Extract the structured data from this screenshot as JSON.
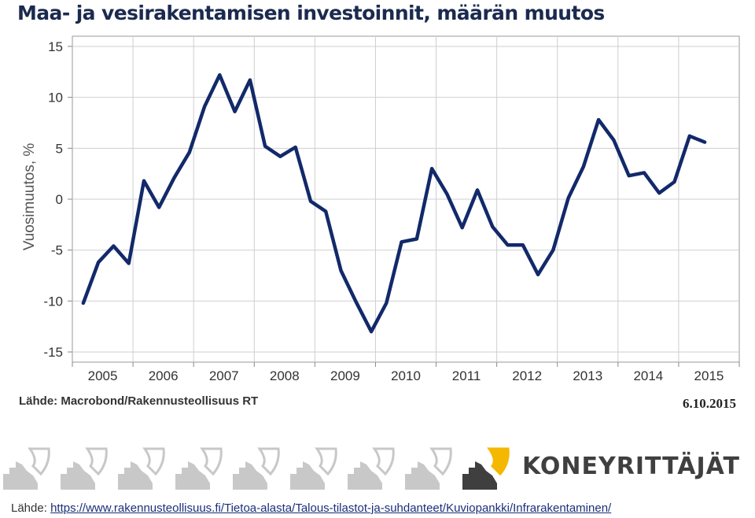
{
  "chart_data": {
    "type": "line",
    "title": "Maa- ja vesirakentamisen investoinnit, määrän muutos",
    "ylabel": "Vuosimuutos, %",
    "xlabel": "",
    "ylim": [
      -16,
      16
    ],
    "yticks": [
      15,
      10,
      5,
      0,
      -5,
      -10,
      -15
    ],
    "x_tick_labels": [
      "2005",
      "2006",
      "2007",
      "2008",
      "2009",
      "2010",
      "2011",
      "2012",
      "2013",
      "2014",
      "2015"
    ],
    "grid": true,
    "legend": "none",
    "line_color": "#12296a",
    "series": [
      {
        "x": [
          "2005 Q1",
          "2005 Q2",
          "2005 Q3",
          "2005 Q4",
          "2006 Q1",
          "2006 Q2",
          "2006 Q3",
          "2006 Q4",
          "2007 Q1",
          "2007 Q2",
          "2007 Q3",
          "2007 Q4",
          "2008 Q1",
          "2008 Q2",
          "2008 Q3",
          "2008 Q4",
          "2009 Q1",
          "2009 Q2",
          "2009 Q3",
          "2009 Q4",
          "2010 Q1",
          "2010 Q2",
          "2010 Q3",
          "2010 Q4",
          "2011 Q1",
          "2011 Q2",
          "2011 Q3",
          "2011 Q4",
          "2012 Q1",
          "2012 Q2",
          "2012 Q3",
          "2012 Q4",
          "2013 Q1",
          "2013 Q2",
          "2013 Q3",
          "2013 Q4",
          "2014 Q1",
          "2014 Q2",
          "2014 Q3",
          "2014 Q4",
          "2015 Q1",
          "2015 Q2"
        ],
        "values": [
          -10.2,
          -6.2,
          -4.6,
          -6.3,
          1.8,
          -0.8,
          2.1,
          4.6,
          9.1,
          12.2,
          8.6,
          11.7,
          5.2,
          4.2,
          5.1,
          -0.2,
          -1.2,
          -7.0,
          -10.1,
          -13.0,
          -10.2,
          -4.2,
          -3.9,
          3.0,
          0.5,
          -2.8,
          0.9,
          -2.7,
          -4.5,
          -4.5,
          -7.4,
          -5.0,
          0.1,
          3.2,
          7.8,
          5.8,
          2.3,
          2.6,
          0.6,
          1.7,
          6.2,
          5.6
        ]
      }
    ]
  },
  "source_label": "Lähde: Macrobond/Rakennusteollisuus RT",
  "date": "6.10.2015",
  "brand": {
    "name": "KONEYRITTÄJÄT",
    "colors": {
      "accent": "#f5b800",
      "dark": "#3f3f3f",
      "grey": "#c8c8c8"
    }
  },
  "footer": {
    "label": "Lähde:",
    "link": "https://www.rakennusteollisuus.fi/Tietoa-alasta/Talous-tilastot-ja-suhdanteet/Kuviopankki/Infrarakentaminen/"
  }
}
